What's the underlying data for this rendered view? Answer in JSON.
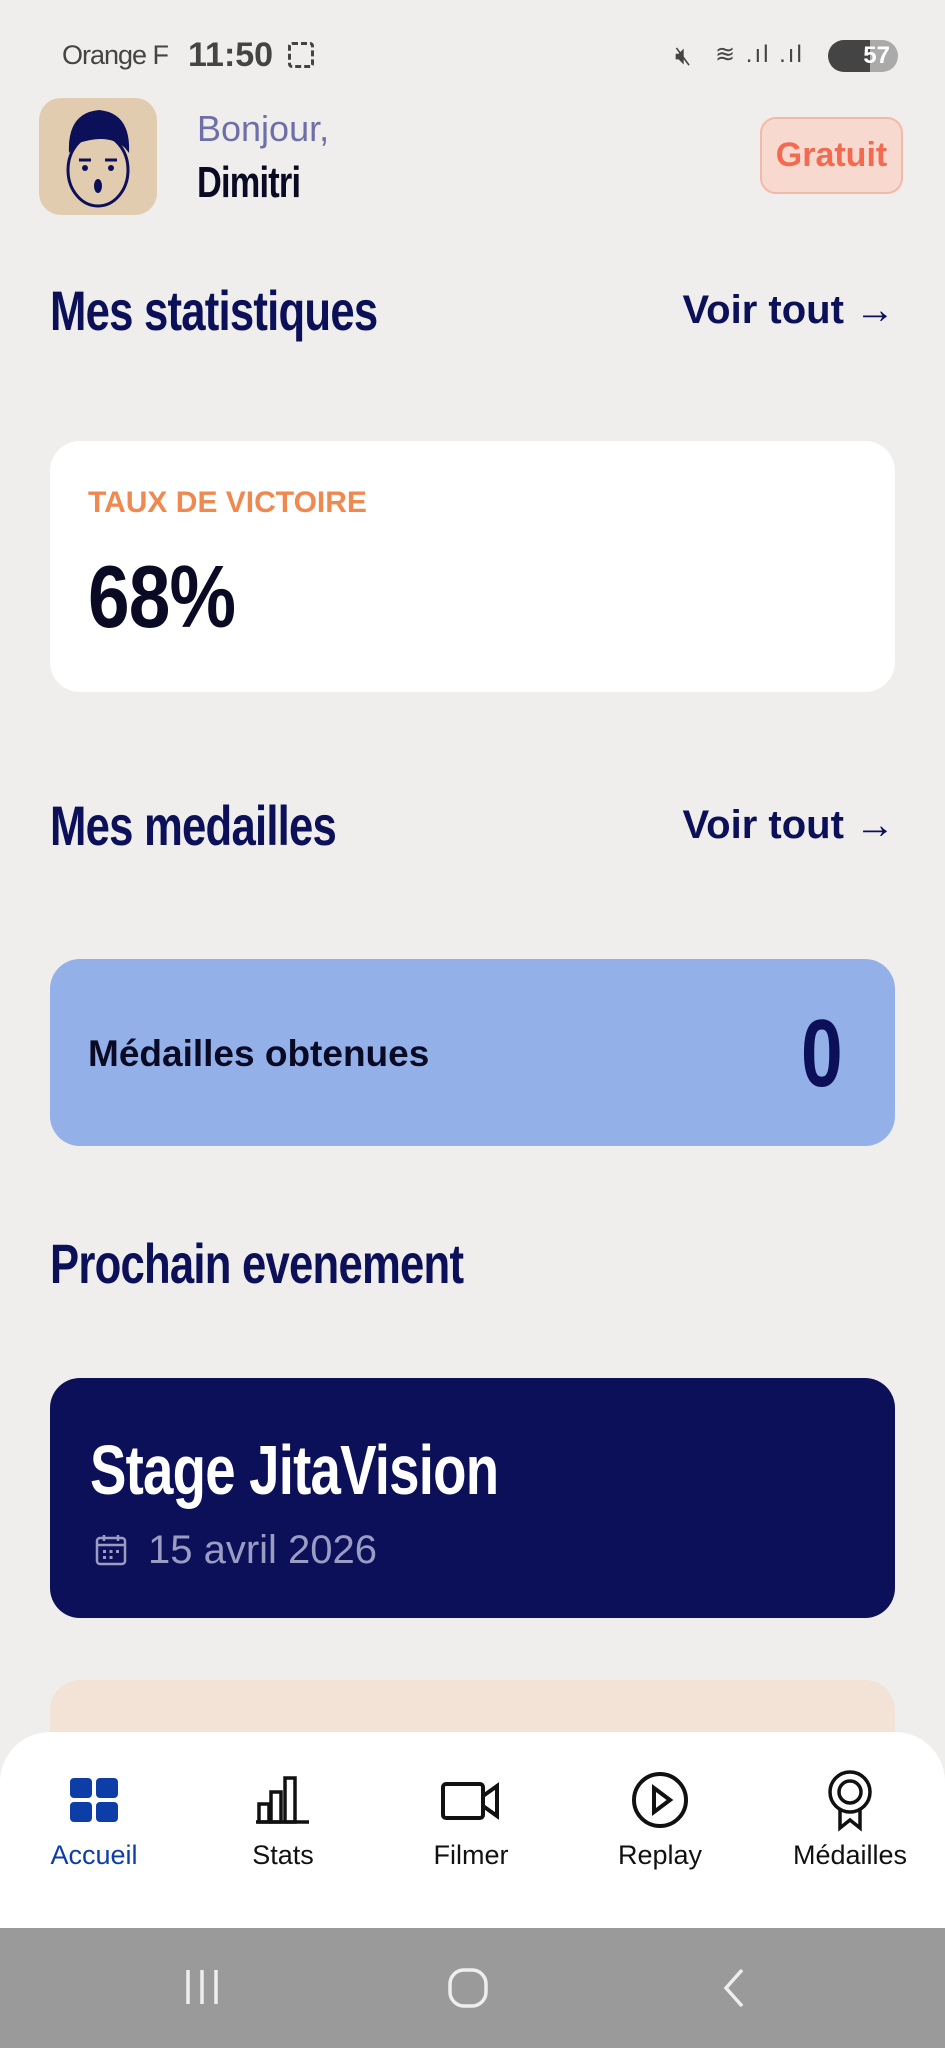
{
  "status_bar": {
    "carrier": "Orange F",
    "time": "11:50",
    "battery": "57"
  },
  "header": {
    "greeting": "Bonjour,",
    "name": "Dimitri",
    "plan_badge": "Gratuit"
  },
  "stats_section": {
    "title": "Mes statistiques",
    "see_all": "Voir tout →",
    "card": {
      "label": "TAUX DE VICTOIRE",
      "value": "68%"
    }
  },
  "medals_section": {
    "title": "Mes medailles",
    "see_all": "Voir tout →",
    "card": {
      "label": "Médailles obtenues",
      "count": "0"
    }
  },
  "event_section": {
    "title": "Prochain evenement",
    "card": {
      "title": "Stage JitaVision",
      "date": "15 avril 2026"
    }
  },
  "bottom_nav": {
    "items": [
      {
        "label": "Accueil",
        "icon": "grid-icon",
        "active": true
      },
      {
        "label": "Stats",
        "icon": "bar-chart-icon"
      },
      {
        "label": "Filmer",
        "icon": "video-camera-icon"
      },
      {
        "label": "Replay",
        "icon": "play-circle-icon"
      },
      {
        "label": "Médailles",
        "icon": "medal-icon"
      }
    ]
  },
  "colors": {
    "primary": "#0c1059",
    "accent_active": "#0d3ea8",
    "orange": "#f0894f",
    "medal_card": "#93b0e8",
    "badge_text": "#f26a4f"
  }
}
